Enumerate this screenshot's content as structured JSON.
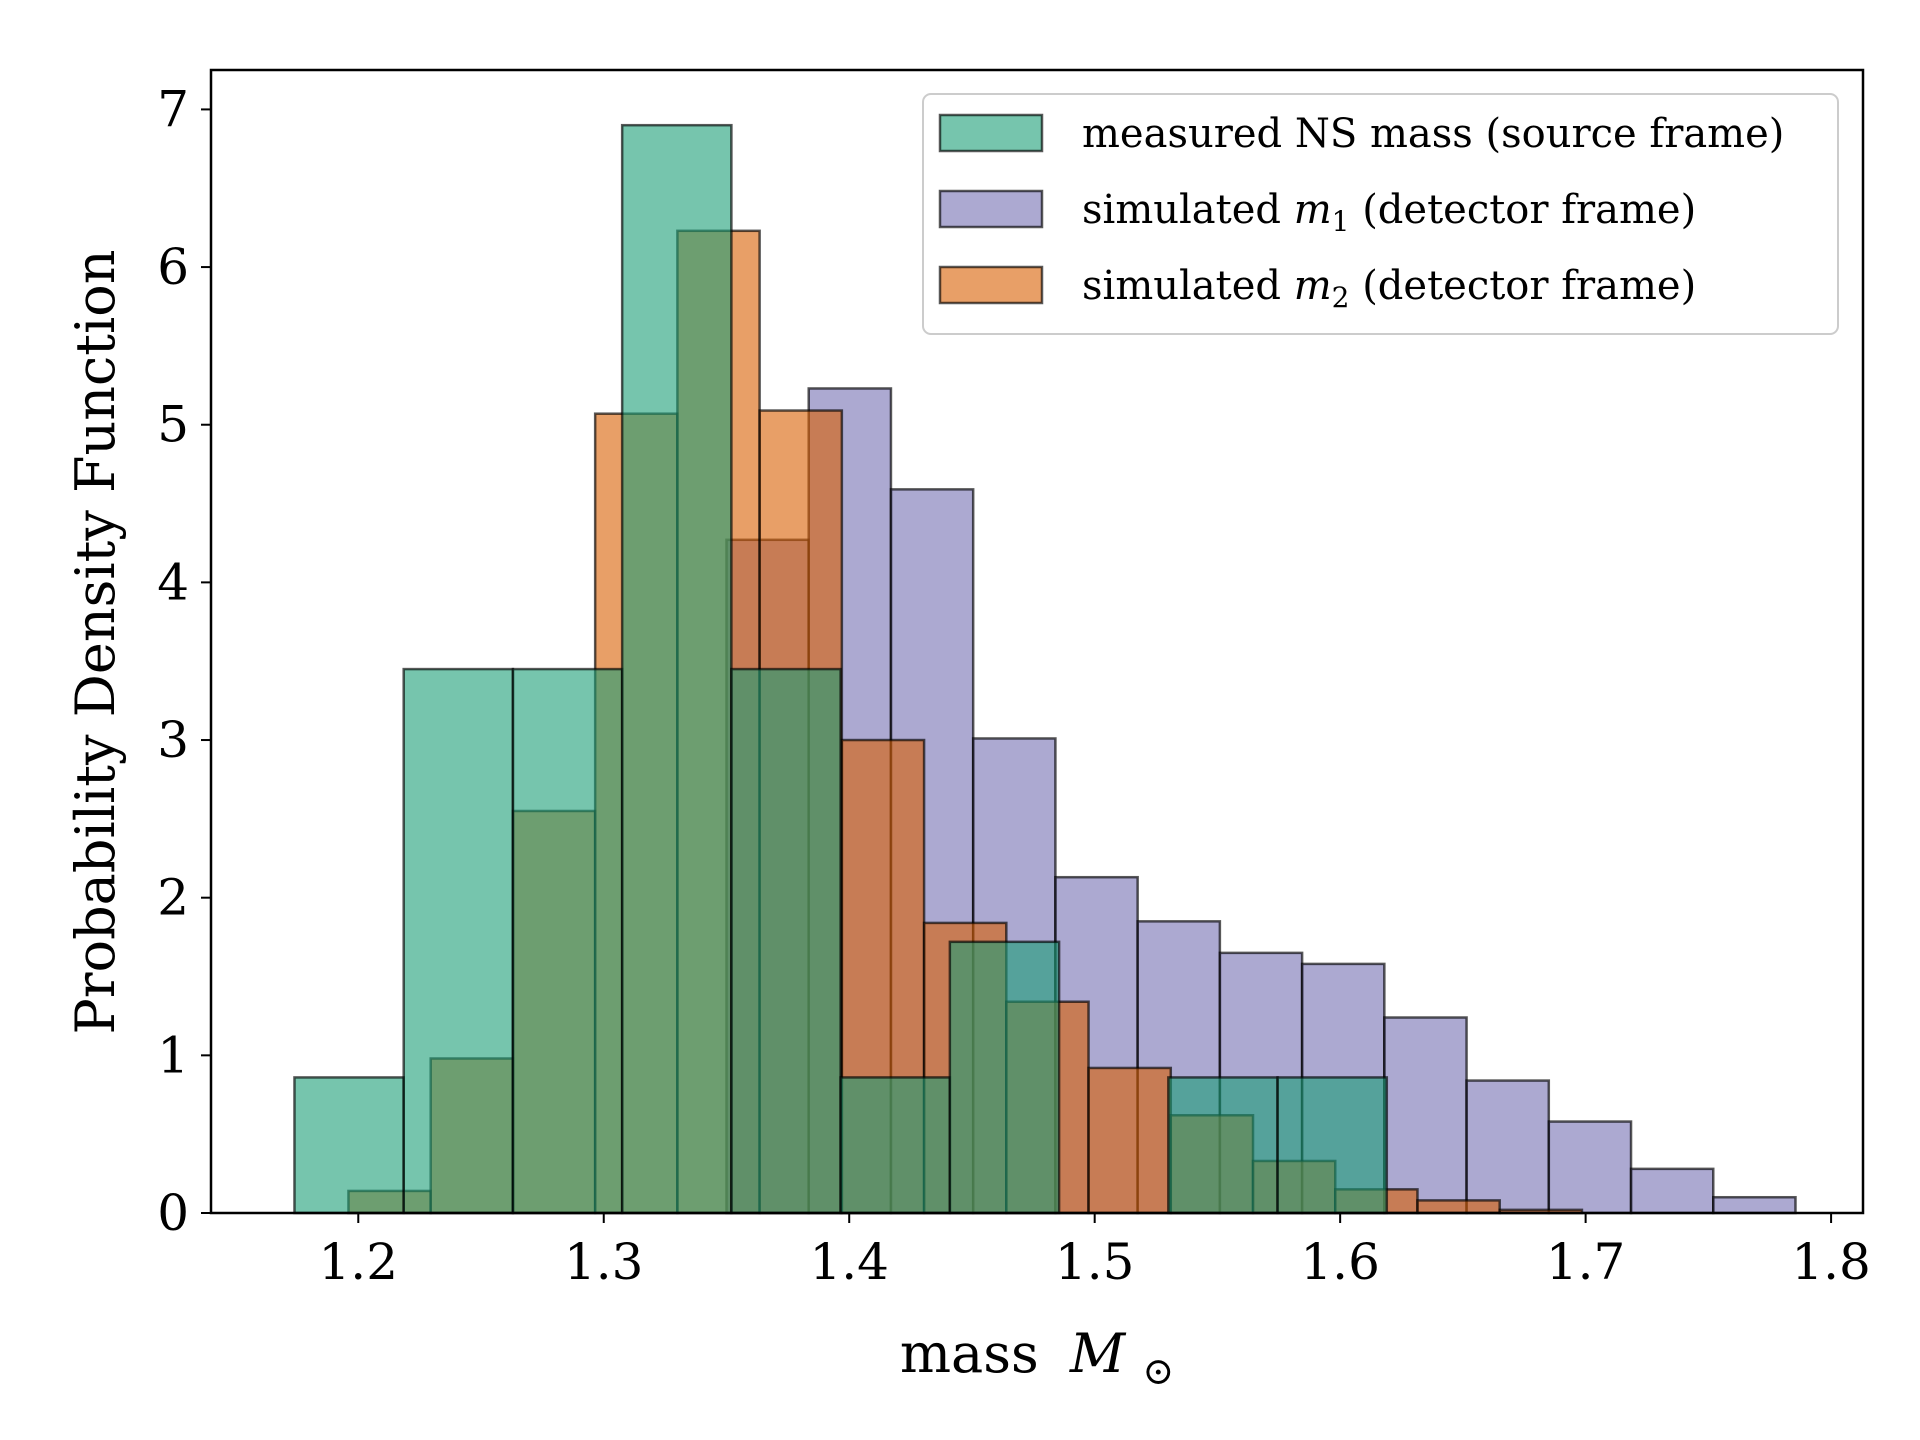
{
  "chart_data": {
    "type": "histogram",
    "xlabel": "mass",
    "xlabel_symbol": "M",
    "xlabel_subscript": "⊙",
    "ylabel": "Probability Density Function",
    "xlim": [
      1.14,
      1.813
    ],
    "ylim": [
      0,
      7.25
    ],
    "xticks": [
      1.2,
      1.3,
      1.4,
      1.5,
      1.6,
      1.7,
      1.8
    ],
    "xtick_labels": [
      "1.2",
      "1.3",
      "1.4",
      "1.5",
      "1.6",
      "1.7",
      "1.8"
    ],
    "yticks": [
      0,
      1,
      2,
      3,
      4,
      5,
      6,
      7
    ],
    "ytick_labels": [
      "0",
      "1",
      "2",
      "3",
      "4",
      "5",
      "6",
      "7"
    ],
    "legend_position": "top-right",
    "series": [
      {
        "name": "simulated m1 (detector frame)",
        "legend_prefix": "simulated ",
        "legend_symbol": "m",
        "legend_subscript": "1",
        "legend_suffix": " (detector frame)",
        "color": "#7570b3",
        "opacity": 0.6,
        "edges": [
          1.35,
          1.3835,
          1.417,
          1.4505,
          1.484,
          1.5175,
          1.551,
          1.5845,
          1.618,
          1.6515,
          1.685,
          1.7185,
          1.752,
          1.7855
        ],
        "values": [
          4.27,
          5.23,
          4.59,
          3.01,
          2.13,
          1.85,
          1.65,
          1.58,
          1.24,
          0.84,
          0.58,
          0.28,
          0.1
        ]
      },
      {
        "name": "simulated m2 (detector frame)",
        "legend_prefix": "simulated ",
        "legend_symbol": "m",
        "legend_subscript": "2",
        "legend_suffix": " (detector frame)",
        "color": "#d95f02",
        "opacity": 0.6,
        "edges": [
          1.196,
          1.2295,
          1.263,
          1.2965,
          1.33,
          1.3635,
          1.397,
          1.4305,
          1.464,
          1.4975,
          1.531,
          1.5645,
          1.598,
          1.6315,
          1.665,
          1.6985,
          1.732
        ],
        "values": [
          0.14,
          0.98,
          2.55,
          5.07,
          6.23,
          5.09,
          3.0,
          1.84,
          1.34,
          0.92,
          0.62,
          0.33,
          0.15,
          0.08,
          0.02,
          0.0
        ]
      },
      {
        "name": "measured NS mass (source frame)",
        "legend_prefix": "measured NS mass (source frame)",
        "legend_symbol": "",
        "legend_subscript": "",
        "legend_suffix": "",
        "color": "#1b9e77",
        "opacity": 0.6,
        "edges": [
          1.174,
          1.2185,
          1.263,
          1.3075,
          1.352,
          1.3965,
          1.441,
          1.4855,
          1.53,
          1.5745,
          1.619
        ],
        "values": [
          0.86,
          3.45,
          3.45,
          6.9,
          3.45,
          0.86,
          1.72,
          0.0,
          0.86,
          0.86
        ]
      }
    ]
  }
}
